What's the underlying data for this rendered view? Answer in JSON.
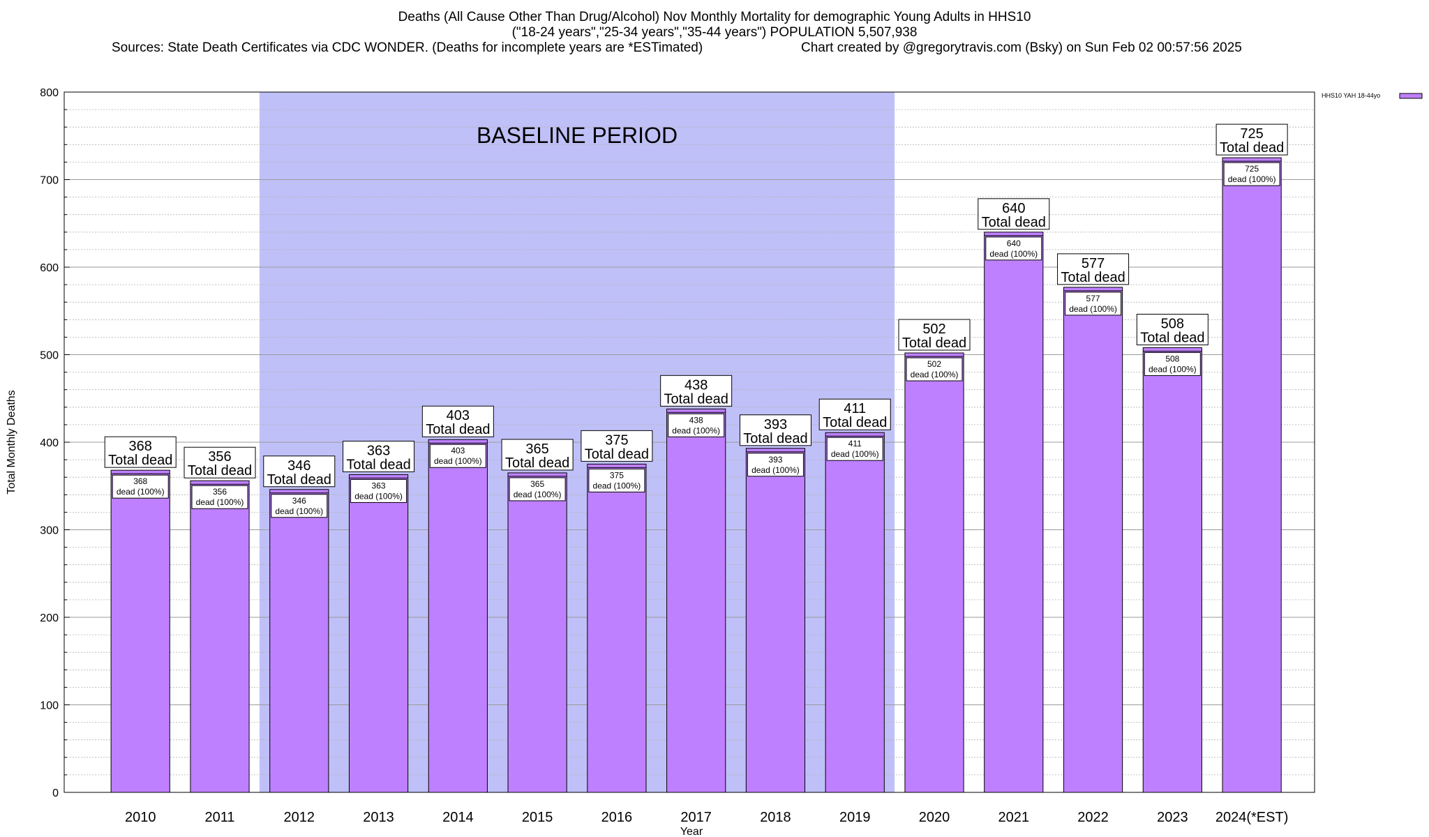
{
  "header": {
    "title": "Deaths (All Cause Other Than Drug/Alcohol) Nov Monthly Mortality for demographic Young Adults in HHS10",
    "subtitle": "(\"18-24 years\",\"25-34 years\",\"35-44 years\") POPULATION 5,507,938",
    "sources": "Sources: State Death Certificates via CDC WONDER. (Deaths for incomplete years are *ESTimated)",
    "credit": "Chart created by @gregorytravis.com (Bsky) on Sun Feb 02 00:57:56 2025"
  },
  "chart_data": {
    "type": "bar",
    "title": "Deaths (All Cause Other Than Drug/Alcohol) Nov Monthly Mortality for demographic Young Adults in HHS10",
    "xlabel": "Year",
    "ylabel": "Total Monthly Deaths",
    "ylim": [
      0,
      800
    ],
    "yticks": [
      0,
      100,
      200,
      300,
      400,
      500,
      600,
      700,
      800
    ],
    "grid": true,
    "legend_position": "top-right",
    "categories": [
      "2010",
      "2011",
      "2012",
      "2013",
      "2014",
      "2015",
      "2016",
      "2017",
      "2018",
      "2019",
      "2020",
      "2021",
      "2022",
      "2023",
      "2024(*EST)"
    ],
    "series": [
      {
        "name": "HHS10 YAH 18-44yo",
        "values": [
          368,
          356,
          346,
          363,
          403,
          365,
          375,
          438,
          393,
          411,
          502,
          640,
          577,
          508,
          725
        ]
      }
    ],
    "top_label_suffix": "Total dead",
    "inner_label_suffix": "dead (100%)",
    "shaded_region": {
      "label": "BASELINE PERIOD",
      "from": "2012",
      "to": "2019"
    },
    "colors": {
      "bar": "#bf80ff",
      "baseline": "#c0c0f8",
      "grid": "#b0b0b0"
    }
  }
}
